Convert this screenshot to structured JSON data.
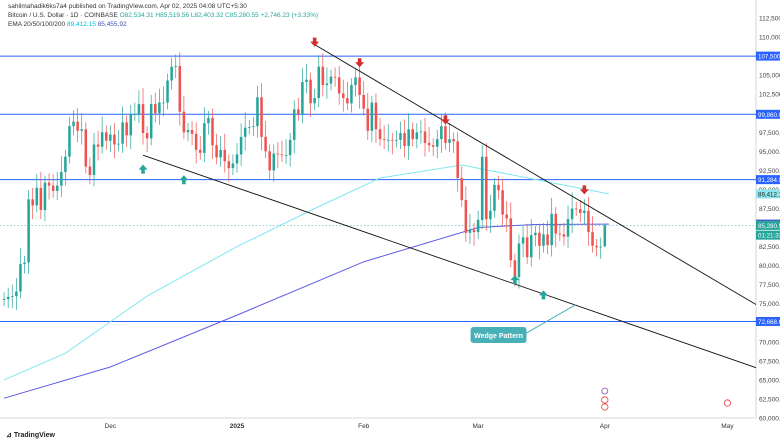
{
  "header": {
    "published": "sahilmahadik6ks7a4 published on TradingView.com, Apr 02, 2025 04:08 UTC+5:30",
    "symbol": "Bitcoin / U.S. Dollar · 1D · COINBASE",
    "ohlc": "O82,534.31 H85,519.56 L82,403.32 C85,280.55 +2,746.23 (+3.33%)",
    "ema_label": "EMA 20/50/100/200",
    "ema_val1": "89,412.15",
    "ema_val2": "85,455.92"
  },
  "footer": {
    "brand": "TradingView"
  },
  "colors": {
    "up": "#26a69a",
    "down": "#ef5350",
    "level": "#2962ff",
    "ema100": "#7fe8f0",
    "ema200": "#5e5ce6",
    "trend": "#111111",
    "callout": "#4ab0b8"
  },
  "chart_data": {
    "type": "candlestick",
    "symbol": "BTCUSD",
    "timeframe": "1D",
    "ylim": [
      60000,
      112500
    ],
    "y_ticks": [
      "112,500.00",
      "110,000.00",
      "107,500.00",
      "105,000.00",
      "102,500.00",
      "99,860.00",
      "97,500.00",
      "95,000.00",
      "92,500.00",
      "91,284.94",
      "90,000.00",
      "89,412.15",
      "87,500.00",
      "85,455.92",
      "85,280.55",
      "01:21:33",
      "82,500.00",
      "80,000.00",
      "77,500.00",
      "75,000.00",
      "72,668.69",
      "72,500.00",
      "70,000.00",
      "67,500.00",
      "65,000.00",
      "62,500.00",
      "60,000.00"
    ],
    "x_ticks": [
      {
        "label": "Dec",
        "date": "2024-12-01",
        "bold": false
      },
      {
        "label": "2025",
        "date": "2025-01-01",
        "bold": true
      },
      {
        "label": "Feb",
        "date": "2025-02-01",
        "bold": false
      },
      {
        "label": "Mar",
        "date": "2025-03-01",
        "bold": false
      },
      {
        "label": "Apr",
        "date": "2025-04-01",
        "bold": false
      },
      {
        "label": "May",
        "date": "2025-05-01",
        "bold": false
      }
    ],
    "x_range": [
      "2024-11-04",
      "2025-05-08"
    ],
    "candles": [
      {
        "date": "2024-11-05",
        "c": 75600
      },
      {
        "date": "2024-11-06",
        "c": 75900
      },
      {
        "date": "2024-11-07",
        "c": 76000
      },
      {
        "date": "2024-11-08",
        "c": 76600
      },
      {
        "date": "2024-11-09",
        "c": 80200
      },
      {
        "date": "2024-11-10",
        "c": 80400
      },
      {
        "date": "2024-11-11",
        "c": 88700
      },
      {
        "date": "2024-11-12",
        "c": 87900
      },
      {
        "date": "2024-11-13",
        "c": 90200
      },
      {
        "date": "2024-11-14",
        "c": 87300
      },
      {
        "date": "2024-11-15",
        "c": 90900
      },
      {
        "date": "2024-11-16",
        "c": 90500
      },
      {
        "date": "2024-11-17",
        "c": 89800
      },
      {
        "date": "2024-11-18",
        "c": 90500
      },
      {
        "date": "2024-11-19",
        "c": 92300
      },
      {
        "date": "2024-11-20",
        "c": 94300
      },
      {
        "date": "2024-11-21",
        "c": 98300
      },
      {
        "date": "2024-11-22",
        "c": 98900
      },
      {
        "date": "2024-11-23",
        "c": 97700
      },
      {
        "date": "2024-11-24",
        "c": 97900
      },
      {
        "date": "2024-11-25",
        "c": 93000
      },
      {
        "date": "2024-11-26",
        "c": 91900
      },
      {
        "date": "2024-11-27",
        "c": 95900
      },
      {
        "date": "2024-11-28",
        "c": 95600
      },
      {
        "date": "2024-11-29",
        "c": 97500
      },
      {
        "date": "2024-11-30",
        "c": 96400
      },
      {
        "date": "2024-12-01",
        "c": 97200
      },
      {
        "date": "2024-12-02",
        "c": 95900
      },
      {
        "date": "2024-12-03",
        "c": 96000
      },
      {
        "date": "2024-12-04",
        "c": 98800
      },
      {
        "date": "2024-12-05",
        "c": 97100
      },
      {
        "date": "2024-12-06",
        "c": 99900
      },
      {
        "date": "2024-12-07",
        "c": 99900
      },
      {
        "date": "2024-12-08",
        "c": 101200
      },
      {
        "date": "2024-12-09",
        "c": 97400
      },
      {
        "date": "2024-12-10",
        "c": 96700
      },
      {
        "date": "2024-12-11",
        "c": 101200
      },
      {
        "date": "2024-12-12",
        "c": 100000
      },
      {
        "date": "2024-12-13",
        "c": 101400
      },
      {
        "date": "2024-12-14",
        "c": 101400
      },
      {
        "date": "2024-12-15",
        "c": 104300
      },
      {
        "date": "2024-12-16",
        "c": 106100
      },
      {
        "date": "2024-12-17",
        "c": 106200
      },
      {
        "date": "2024-12-18",
        "c": 100200
      },
      {
        "date": "2024-12-19",
        "c": 97500
      },
      {
        "date": "2024-12-20",
        "c": 97800
      },
      {
        "date": "2024-12-21",
        "c": 97300
      },
      {
        "date": "2024-12-22",
        "c": 95200
      },
      {
        "date": "2024-12-23",
        "c": 94800
      },
      {
        "date": "2024-12-24",
        "c": 98700
      },
      {
        "date": "2024-12-25",
        "c": 99400
      },
      {
        "date": "2024-12-26",
        "c": 95800
      },
      {
        "date": "2024-12-27",
        "c": 94200
      },
      {
        "date": "2024-12-28",
        "c": 95200
      },
      {
        "date": "2024-12-29",
        "c": 93700
      },
      {
        "date": "2024-12-30",
        "c": 92800
      },
      {
        "date": "2024-12-31",
        "c": 93400
      },
      {
        "date": "2025-01-01",
        "c": 94600
      },
      {
        "date": "2025-01-02",
        "c": 96900
      },
      {
        "date": "2025-01-03",
        "c": 98100
      },
      {
        "date": "2025-01-04",
        "c": 98200
      },
      {
        "date": "2025-01-05",
        "c": 98300
      },
      {
        "date": "2025-01-06",
        "c": 102100
      },
      {
        "date": "2025-01-07",
        "c": 96900
      },
      {
        "date": "2025-01-08",
        "c": 95000
      },
      {
        "date": "2025-01-09",
        "c": 92500
      },
      {
        "date": "2025-01-10",
        "c": 94700
      },
      {
        "date": "2025-01-11",
        "c": 94600
      },
      {
        "date": "2025-01-12",
        "c": 94500
      },
      {
        "date": "2025-01-13",
        "c": 94500
      },
      {
        "date": "2025-01-14",
        "c": 96500
      },
      {
        "date": "2025-01-15",
        "c": 100500
      },
      {
        "date": "2025-01-16",
        "c": 99900
      },
      {
        "date": "2025-01-17",
        "c": 104100
      },
      {
        "date": "2025-01-18",
        "c": 104400
      },
      {
        "date": "2025-01-19",
        "c": 101300
      },
      {
        "date": "2025-01-20",
        "c": 102000
      },
      {
        "date": "2025-01-21",
        "c": 106100
      },
      {
        "date": "2025-01-22",
        "c": 103700
      },
      {
        "date": "2025-01-23",
        "c": 103900
      },
      {
        "date": "2025-01-24",
        "c": 104800
      },
      {
        "date": "2025-01-25",
        "c": 104700
      },
      {
        "date": "2025-01-26",
        "c": 102600
      },
      {
        "date": "2025-01-27",
        "c": 102000
      },
      {
        "date": "2025-01-28",
        "c": 101300
      },
      {
        "date": "2025-01-29",
        "c": 103700
      },
      {
        "date": "2025-01-30",
        "c": 104700
      },
      {
        "date": "2025-01-31",
        "c": 102400
      },
      {
        "date": "2025-02-01",
        "c": 100600
      },
      {
        "date": "2025-02-02",
        "c": 97700
      },
      {
        "date": "2025-02-03",
        "c": 101400
      },
      {
        "date": "2025-02-04",
        "c": 97900
      },
      {
        "date": "2025-02-05",
        "c": 96600
      },
      {
        "date": "2025-02-06",
        "c": 96500
      },
      {
        "date": "2025-02-07",
        "c": 96500
      },
      {
        "date": "2025-02-08",
        "c": 96400
      },
      {
        "date": "2025-02-09",
        "c": 96500
      },
      {
        "date": "2025-02-10",
        "c": 97400
      },
      {
        "date": "2025-02-11",
        "c": 95700
      },
      {
        "date": "2025-02-12",
        "c": 97900
      },
      {
        "date": "2025-02-13",
        "c": 96600
      },
      {
        "date": "2025-02-14",
        "c": 97500
      },
      {
        "date": "2025-02-15",
        "c": 97600
      },
      {
        "date": "2025-02-16",
        "c": 96100
      },
      {
        "date": "2025-02-17",
        "c": 95800
      },
      {
        "date": "2025-02-18",
        "c": 95600
      },
      {
        "date": "2025-02-19",
        "c": 96600
      },
      {
        "date": "2025-02-20",
        "c": 98300
      },
      {
        "date": "2025-02-21",
        "c": 96100
      },
      {
        "date": "2025-02-22",
        "c": 96600
      },
      {
        "date": "2025-02-23",
        "c": 96300
      },
      {
        "date": "2025-02-24",
        "c": 91500
      },
      {
        "date": "2025-02-25",
        "c": 88600
      },
      {
        "date": "2025-02-26",
        "c": 84300
      },
      {
        "date": "2025-02-27",
        "c": 84700
      },
      {
        "date": "2025-02-28",
        "c": 84400
      },
      {
        "date": "2025-03-01",
        "c": 86000
      },
      {
        "date": "2025-03-02",
        "c": 94300
      },
      {
        "date": "2025-03-03",
        "c": 86100
      },
      {
        "date": "2025-03-04",
        "c": 87200
      },
      {
        "date": "2025-03-05",
        "c": 90600
      },
      {
        "date": "2025-03-06",
        "c": 89900
      },
      {
        "date": "2025-03-07",
        "c": 86700
      },
      {
        "date": "2025-03-08",
        "c": 86200
      },
      {
        "date": "2025-03-09",
        "c": 80700
      },
      {
        "date": "2025-03-10",
        "c": 78500
      },
      {
        "date": "2025-03-11",
        "c": 82900
      },
      {
        "date": "2025-03-12",
        "c": 83700
      },
      {
        "date": "2025-03-13",
        "c": 81100
      },
      {
        "date": "2025-03-14",
        "c": 84000
      },
      {
        "date": "2025-03-15",
        "c": 84300
      },
      {
        "date": "2025-03-16",
        "c": 82600
      },
      {
        "date": "2025-03-17",
        "c": 84100
      },
      {
        "date": "2025-03-18",
        "c": 82700
      },
      {
        "date": "2025-03-19",
        "c": 86800
      },
      {
        "date": "2025-03-20",
        "c": 84200
      },
      {
        "date": "2025-03-21",
        "c": 84100
      },
      {
        "date": "2025-03-22",
        "c": 83800
      },
      {
        "date": "2025-03-23",
        "c": 86100
      },
      {
        "date": "2025-03-24",
        "c": 87500
      },
      {
        "date": "2025-03-25",
        "c": 87400
      },
      {
        "date": "2025-03-26",
        "c": 86900
      },
      {
        "date": "2025-03-27",
        "c": 87200
      },
      {
        "date": "2025-03-28",
        "c": 84400
      },
      {
        "date": "2025-03-29",
        "c": 82600
      },
      {
        "date": "2025-03-30",
        "c": 82400
      },
      {
        "date": "2025-03-31",
        "c": 82500
      },
      {
        "date": "2025-04-01",
        "o": 82534.31,
        "h": 85519.56,
        "l": 82403.32,
        "c": 85280.55
      }
    ],
    "horizontal_levels": [
      107500,
      99860,
      91284.94,
      72668.69
    ],
    "price_labels": [
      {
        "text": "107,500.00",
        "value": 107500,
        "style": "level"
      },
      {
        "text": "99,860.00",
        "value": 99860,
        "style": "level"
      },
      {
        "text": "91,284.94",
        "value": 91284.94,
        "style": "level"
      },
      {
        "text": "89,412.15",
        "value": 89412.15,
        "style": "ema100"
      },
      {
        "text": "85,455.92",
        "value": 85455.92,
        "style": "ema200"
      },
      {
        "text": "85,280.55",
        "value": 85280.55,
        "style": "price"
      },
      {
        "text": "01:21:33",
        "value": 84000,
        "style": "price"
      },
      {
        "text": "72,668.69",
        "value": 72668.69,
        "style": "level"
      }
    ],
    "ema100": [
      {
        "date": "2024-11-05",
        "v": 65000
      },
      {
        "date": "2024-11-20",
        "v": 68500
      },
      {
        "date": "2024-12-10",
        "v": 76000
      },
      {
        "date": "2025-01-01",
        "v": 82500
      },
      {
        "date": "2025-01-20",
        "v": 87500
      },
      {
        "date": "2025-02-05",
        "v": 91500
      },
      {
        "date": "2025-02-25",
        "v": 93200
      },
      {
        "date": "2025-03-15",
        "v": 91300
      },
      {
        "date": "2025-04-02",
        "v": 89412.15
      }
    ],
    "ema200": [
      {
        "date": "2024-11-05",
        "v": 62600
      },
      {
        "date": "2024-12-01",
        "v": 66700
      },
      {
        "date": "2025-01-01",
        "v": 73500
      },
      {
        "date": "2025-02-01",
        "v": 80500
      },
      {
        "date": "2025-03-01",
        "v": 85000
      },
      {
        "date": "2025-03-15",
        "v": 85400
      },
      {
        "date": "2025-04-02",
        "v": 85455.92
      }
    ],
    "trendlines": [
      {
        "from": {
          "date": "2025-01-20",
          "v": 109000
        },
        "to": {
          "date": "2025-05-08",
          "v": 74900
        }
      },
      {
        "from": {
          "date": "2024-12-09",
          "v": 94500
        },
        "to": {
          "date": "2025-05-08",
          "v": 66600
        }
      }
    ],
    "markers": [
      {
        "date": "2024-12-09",
        "v": 92600,
        "dir": "up"
      },
      {
        "date": "2024-12-19",
        "v": 91200,
        "dir": "up"
      },
      {
        "date": "2025-03-10",
        "v": 78100,
        "dir": "up"
      },
      {
        "date": "2025-03-17",
        "v": 76100,
        "dir": "up"
      },
      {
        "date": "2025-01-20",
        "v": 109400,
        "dir": "down"
      },
      {
        "date": "2025-01-31",
        "v": 106700,
        "dir": "down"
      },
      {
        "date": "2025-02-21",
        "v": 99200,
        "dir": "down"
      },
      {
        "date": "2025-03-27",
        "v": 90000,
        "dir": "down"
      }
    ],
    "annotation": {
      "text": "Wedge Pattern",
      "date": "2025-03-06",
      "v": 70900,
      "arrow_to": {
        "date": "2025-03-25",
        "v": 74900
      }
    }
  }
}
